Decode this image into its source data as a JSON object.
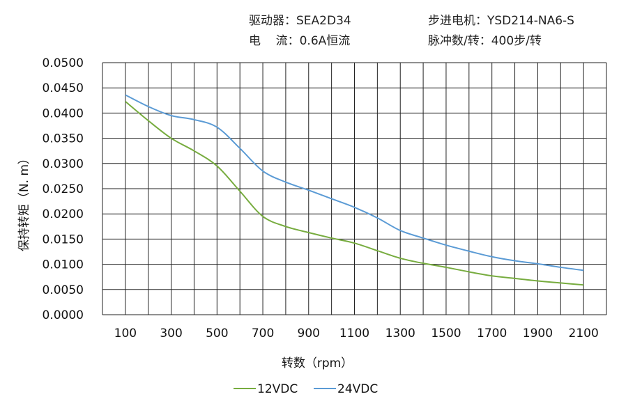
{
  "header": {
    "driver": "驱动器：SEA2D34",
    "current": "电    流：0.6A恒流",
    "motor": "步进电机：YSD214-NA6-S",
    "pulses": "脉冲数/转：400步/转"
  },
  "chart_data": {
    "type": "line",
    "title": "",
    "xlabel": "转数（rpm）",
    "ylabel": "保持转矩（N. m）",
    "xlim": [
      0,
      2200
    ],
    "ylim": [
      0,
      0.05
    ],
    "grid": true,
    "legend": "bottom",
    "x_ticks": [
      "100",
      "300",
      "500",
      "700",
      "900",
      "1100",
      "1300",
      "1500",
      "1700",
      "1900",
      "2100"
    ],
    "y_ticks": [
      "0.0000",
      "0.0050",
      "0.0100",
      "0.0150",
      "0.0200",
      "0.0250",
      "0.0300",
      "0.0350",
      "0.0400",
      "0.0450",
      "0.0500"
    ],
    "x": [
      100,
      200,
      300,
      400,
      500,
      600,
      700,
      800,
      900,
      1000,
      1100,
      1200,
      1300,
      1400,
      1500,
      1600,
      1700,
      1800,
      1900,
      2000,
      2100
    ],
    "series": [
      {
        "name": "12VDC",
        "color": "#77ac3f",
        "values": [
          0.0423,
          0.0385,
          0.035,
          0.0325,
          0.0295,
          0.0245,
          0.0195,
          0.0175,
          0.0163,
          0.0152,
          0.0142,
          0.0127,
          0.0112,
          0.0102,
          0.0094,
          0.0085,
          0.0077,
          0.0072,
          0.0067,
          0.0063,
          0.0059
        ]
      },
      {
        "name": "24VDC",
        "color": "#5b9bd5",
        "values": [
          0.0436,
          0.0413,
          0.0395,
          0.0387,
          0.0372,
          0.033,
          0.0285,
          0.0263,
          0.0247,
          0.023,
          0.0213,
          0.0192,
          0.0167,
          0.0152,
          0.0138,
          0.0126,
          0.0115,
          0.0107,
          0.0101,
          0.0094,
          0.0088
        ]
      }
    ]
  }
}
